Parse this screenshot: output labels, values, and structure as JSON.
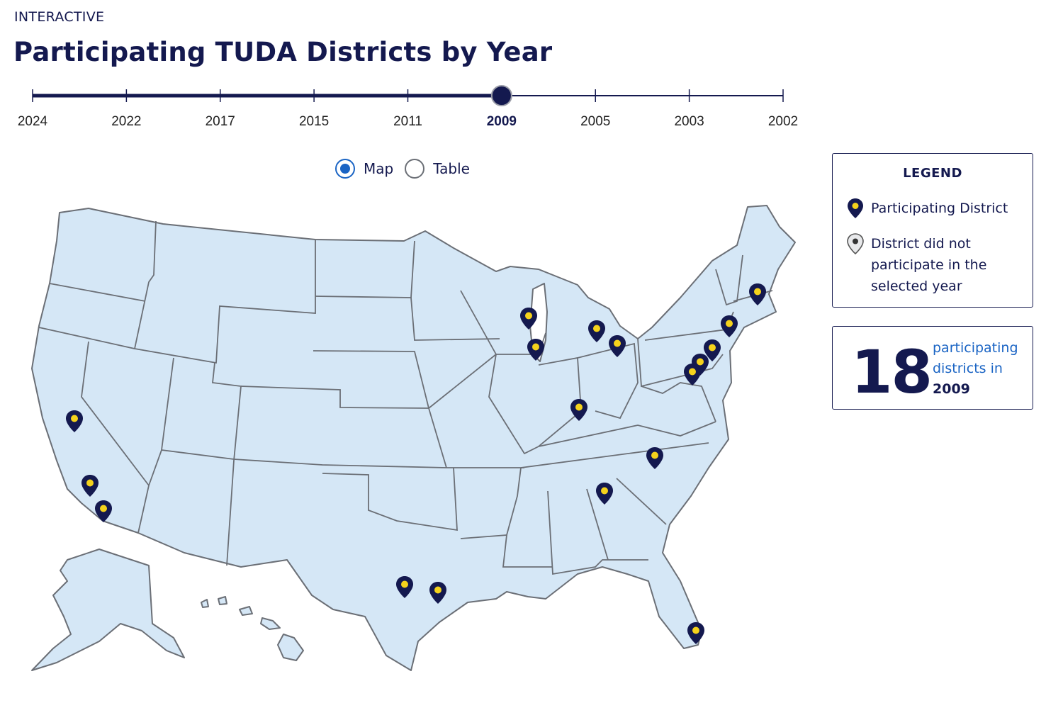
{
  "header": {
    "eyebrow": "INTERACTIVE",
    "title": "Participating TUDA Districts by Year"
  },
  "slider": {
    "years": [
      "2024",
      "2022",
      "2017",
      "2015",
      "2011",
      "2009",
      "2005",
      "2003",
      "2002"
    ],
    "selected_index": 5,
    "selected_year": "2009"
  },
  "view_toggle": {
    "options": [
      {
        "label": "Map",
        "checked": true
      },
      {
        "label": "Table",
        "checked": false
      }
    ]
  },
  "legend": {
    "title": "LEGEND",
    "participating_label": "Participating District",
    "not_participating_label": "District did not participate in the selected year"
  },
  "summary": {
    "count": "18",
    "label_line1": "participating",
    "label_line2": "districts in",
    "year": "2009"
  },
  "map": {
    "land_color": "#d5e7f6",
    "border_color": "#6b6f76",
    "pin_color": "#14194f",
    "pin_dot_color": "#f5d21c",
    "inactive_pin_color": "#8a8d91",
    "participating_pin_count": 18
  },
  "colors": {
    "brand_navy": "#14194f",
    "accent_blue": "#1a64c4",
    "pin_yellow": "#f5d21c"
  }
}
